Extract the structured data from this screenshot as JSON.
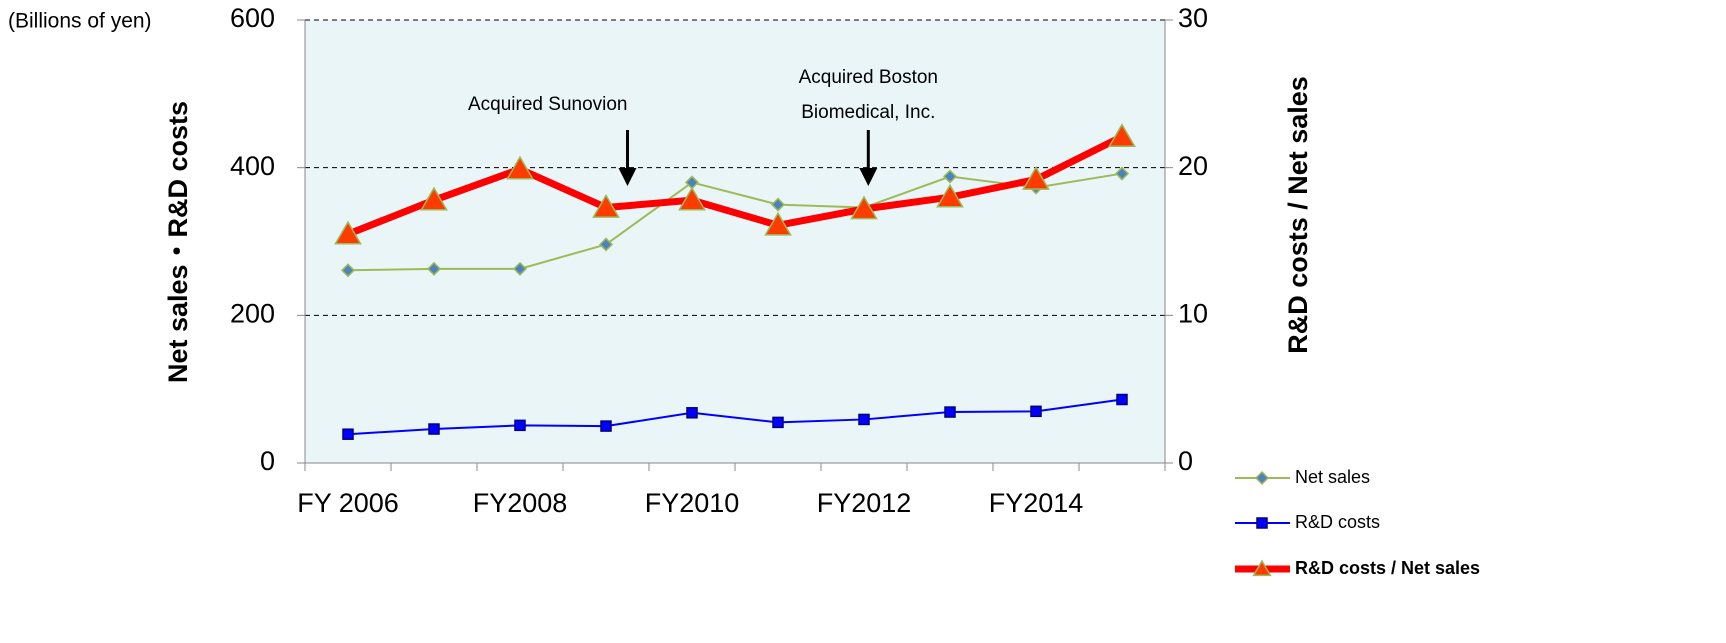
{
  "chart_data": {
    "type": "line",
    "unit_label": "(Billions of yen)",
    "y_label": "Net sales・R&D costs",
    "y2_label": "R&D costs / Net sales",
    "categories": [
      "FY 2006",
      null,
      "FY2008",
      null,
      "FY2010",
      null,
      "FY2012",
      null,
      "FY2014",
      null
    ],
    "series": [
      {
        "name": "Net sales",
        "color": "#9bbb59",
        "marker_color": "#4f81bd",
        "marker": "diamond",
        "values": [
          261,
          263,
          263,
          296,
          380,
          350,
          346,
          388,
          373,
          392
        ]
      },
      {
        "name": "R&D costs",
        "color": "#0000ff",
        "marker_color": "#0000ff",
        "marker": "square",
        "values": [
          39,
          46,
          51,
          50,
          68,
          55,
          59,
          69,
          70,
          86
        ]
      },
      {
        "name": "R&D costs / Net sales",
        "color": "#ff0000",
        "marker_color": "#ff3c00",
        "marker": "triangle",
        "axis": "y2",
        "values": [
          15.5,
          17.8,
          19.9,
          17.3,
          17.8,
          16.1,
          17.2,
          18.0,
          19.2,
          22.1
        ]
      }
    ],
    "ylim": [
      0,
      600
    ],
    "yticks": [
      0,
      200,
      400,
      600
    ],
    "y2lim": [
      0,
      30
    ],
    "y2ticks": [
      0,
      10,
      20,
      30
    ],
    "grid": true,
    "annotations": [
      {
        "lines": [
          "Acquired Sunovion"
        ],
        "category_position": 3.75
      },
      {
        "lines": [
          "Acquired Boston",
          "Biomedical, Inc."
        ],
        "category_position": 6.55
      }
    ]
  }
}
